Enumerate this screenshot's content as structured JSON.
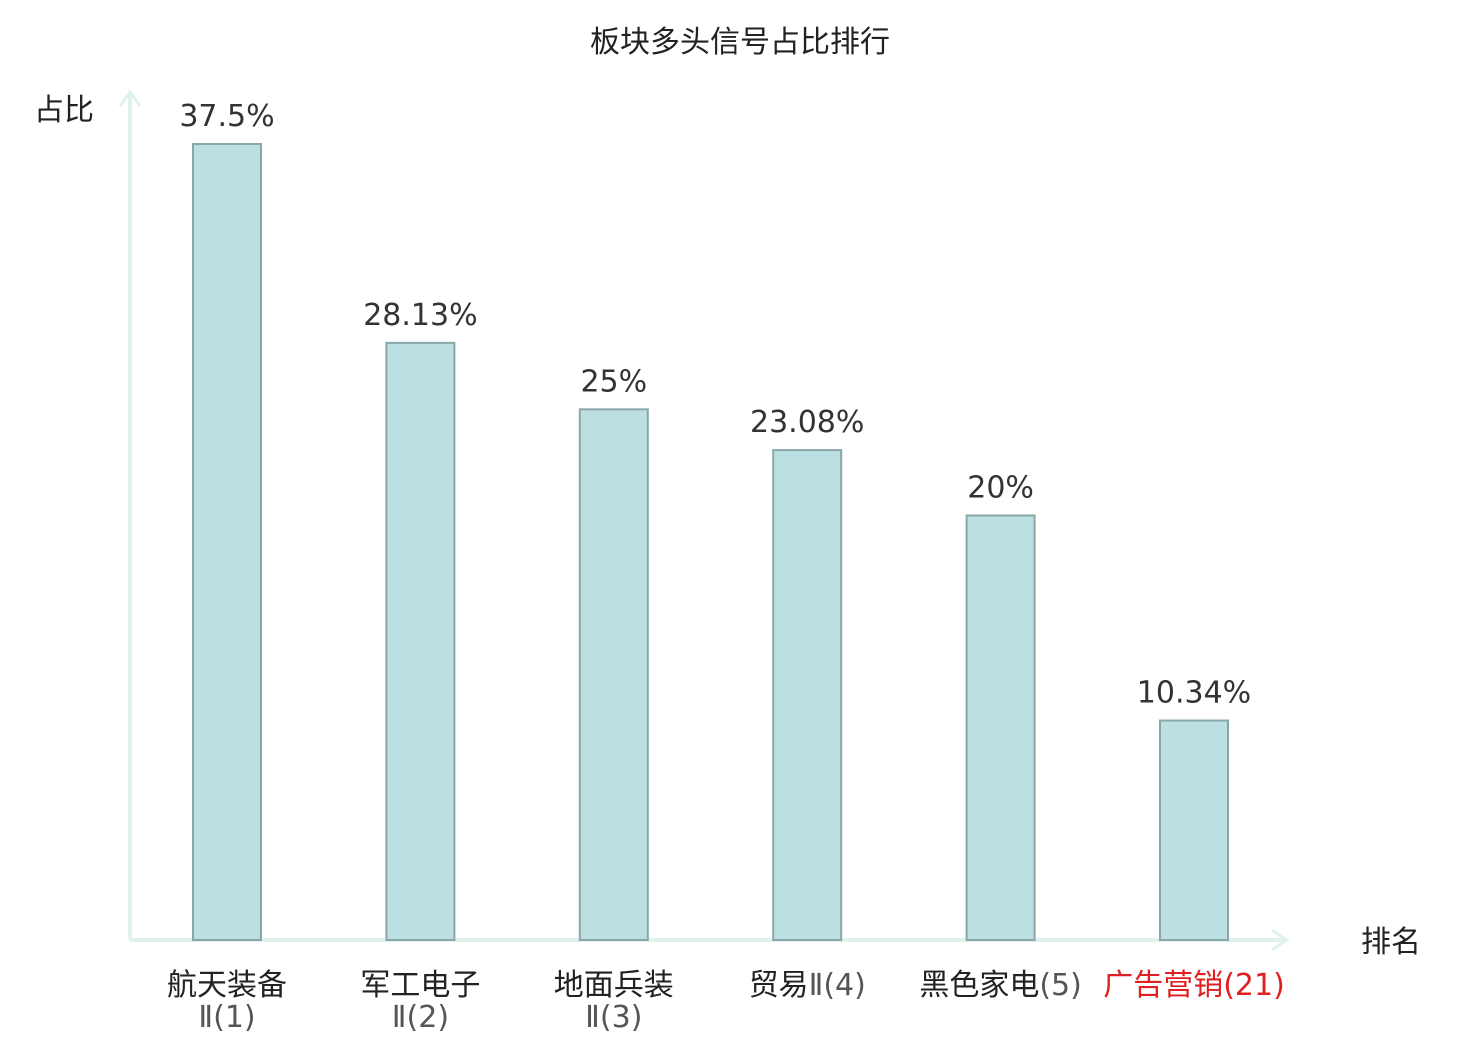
{
  "chart_data": {
    "type": "bar",
    "title": "板块多头信号占比排行",
    "ylabel": "占比",
    "xlabel": "排名",
    "ylim": [
      0,
      37.5
    ],
    "grid": false,
    "legend": "none",
    "bar_color": "#bce0e2",
    "bar_stroke": "#8aa6a8",
    "axis_color": "#dff2ef",
    "highlight_color": "#e02020",
    "categories": [
      {
        "name": "航天装备",
        "rank_text": "Ⅱ(1)",
        "wrap": true,
        "highlight": false
      },
      {
        "name": "军工电子",
        "rank_text": "Ⅱ(2)",
        "wrap": true,
        "highlight": false
      },
      {
        "name": "地面兵装",
        "rank_text": "Ⅱ(3)",
        "wrap": true,
        "highlight": false
      },
      {
        "name": "贸易",
        "rank_text": "Ⅱ(4)",
        "wrap": false,
        "highlight": false
      },
      {
        "name": "黑色家电",
        "rank_text": "(5)",
        "wrap": false,
        "highlight": false
      },
      {
        "name": "广告营销",
        "rank_text": "(21)",
        "wrap": false,
        "highlight": true
      }
    ],
    "values": [
      37.5,
      28.13,
      25,
      23.08,
      20,
      10.34
    ],
    "value_labels": [
      "37.5%",
      "28.13%",
      "25%",
      "23.08%",
      "20%",
      "10.34%"
    ]
  }
}
